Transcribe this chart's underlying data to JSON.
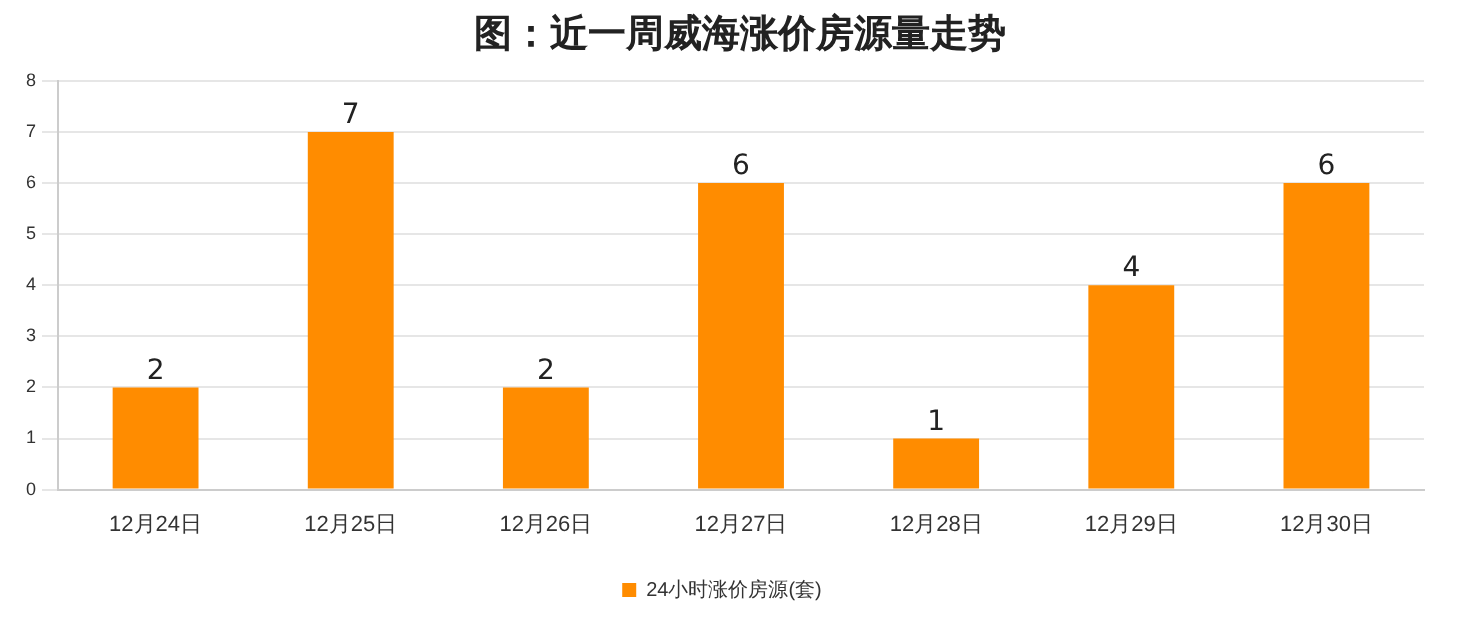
{
  "chart_data": {
    "type": "bar",
    "title": "图：近一周威海涨价房源量走势",
    "categories": [
      "12月24日",
      "12月25日",
      "12月26日",
      "12月27日",
      "12月28日",
      "12月29日",
      "12月30日"
    ],
    "series": [
      {
        "name": "24小时涨价房源(套)",
        "color": "#ff8c00",
        "values": [
          2,
          7,
          2,
          6,
          1,
          4,
          6
        ]
      }
    ],
    "ylim": [
      0,
      8
    ],
    "yticks": [
      0,
      1,
      2,
      3,
      4,
      5,
      6,
      7,
      8
    ],
    "grid": "y",
    "legend": "bottom",
    "data_labels": true
  }
}
